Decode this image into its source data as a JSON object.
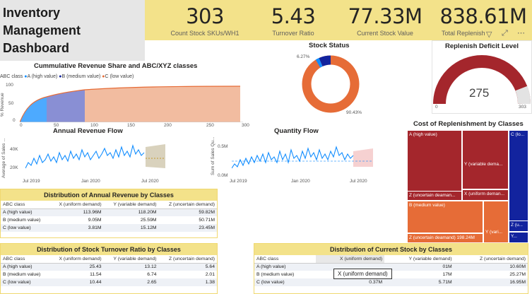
{
  "dashboard": {
    "title_lines": [
      "Inventory",
      "Management",
      "Dashboard"
    ]
  },
  "kpis": [
    {
      "value": "303",
      "label": "Count Stock SKUs/WH1"
    },
    {
      "value": "5.43",
      "label": "Turnover Ratio"
    },
    {
      "value": "77.33M",
      "label": "Current Stock Value"
    },
    {
      "value": "838.61M",
      "label": "Total Replenish"
    }
  ],
  "toolbar_icons": [
    "filter-icon",
    "focus-mode-icon",
    "more-options-icon"
  ],
  "pareto": {
    "title": "Cummulative Revenue Share and ABC/XYZ classes",
    "legend_title": "ABC class",
    "legend": [
      {
        "label": "A (high value)",
        "color": "#118dff"
      },
      {
        "label": "B (medium value)",
        "color": "#12239e"
      },
      {
        "label": "C (low value)",
        "color": "#e66c37"
      }
    ],
    "ylabel": "% Revenue",
    "yticks": [
      "100",
      "50",
      "0"
    ],
    "xticks": [
      "0",
      "50",
      "100",
      "150",
      "200",
      "250",
      "300"
    ]
  },
  "stock_status": {
    "title": "Stock Status",
    "labels": [
      "6.27%",
      "90.43%"
    ]
  },
  "gauge": {
    "title": "Replenish Deficit Level",
    "value": "275",
    "min": "0",
    "max": "303"
  },
  "annual_revenue": {
    "title": "Annual Revenue Flow",
    "ylabel": "Average of Sales ...",
    "yticks": [
      "40K",
      "20K"
    ],
    "xticks": [
      "Jul 2019",
      "Jan 2020",
      "Jul 2020"
    ]
  },
  "quantity_flow": {
    "title": "Quantity Flow",
    "ylabel": "Sum of Sales Qu...",
    "yticks": [
      "0.5M",
      "0.0M"
    ],
    "xticks": [
      "Jul 2019",
      "Jan 2020",
      "Jul 2020"
    ]
  },
  "treemap": {
    "title": "Cost of Replenishment by Classes",
    "cells": [
      "A (high value)",
      "Y (variable dema...",
      "Z (uncertain deaman...",
      "X (uniform deman...",
      "C (lo...",
      "B (medium value)",
      "Z (uncertain deamand) 198.24M",
      "Y (vari...",
      "Z (u...",
      "Y..."
    ]
  },
  "annual_table": {
    "title": "Distribution of Annual Revenue by Classes",
    "headers": [
      "ABC class",
      "X (uniform demand)",
      "Y (variable demand)",
      "Z (uncertain demand)"
    ],
    "rows": [
      [
        "A (high value)",
        "113.96M",
        "118.20M",
        "59.82M"
      ],
      [
        "B (medium value)",
        "9.05M",
        "25.59M",
        "50.71M"
      ],
      [
        "C (low value)",
        "3.81M",
        "15.12M",
        "23.45M"
      ]
    ]
  },
  "turnover_table": {
    "title": "Distribution of Stock Turnover Ratio by Classes",
    "headers": [
      "ABC class",
      "X (uniform demand)",
      "Y (variable demand)",
      "Z (uncertain demand)"
    ],
    "rows": [
      [
        "A (high value)",
        "25.43",
        "13.12",
        "5.64"
      ],
      [
        "B (medium value)",
        "11.54",
        "6.74",
        "2.01"
      ],
      [
        "C (low value)",
        "10.44",
        "2.65",
        "1.38"
      ]
    ]
  },
  "stock_table": {
    "title": "Distribution of Current Stock by Classes",
    "headers": [
      "ABC class",
      "X (uniform demand)",
      "Y (variable demand)",
      "Z (uncertain demand)"
    ],
    "rows": [
      [
        "A (high value)",
        "",
        "01M",
        "10.60M"
      ],
      [
        "B (medium value)",
        "",
        "17M",
        "25.27M"
      ],
      [
        "C (low value)",
        "0.37M",
        "5.71M",
        "16.95M"
      ]
    ],
    "tooltip": "X (uniform demand)"
  }
}
